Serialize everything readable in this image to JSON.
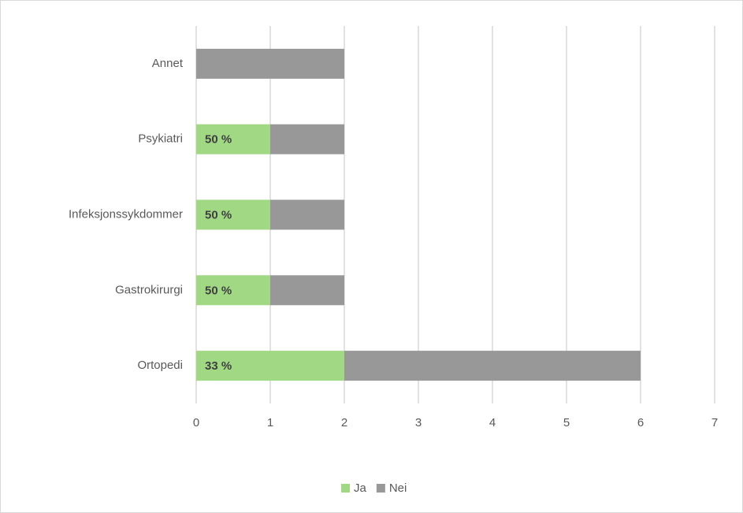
{
  "chart_data": {
    "type": "stacked-bar-horizontal",
    "categories": [
      "Annet",
      "Psykiatri",
      "Infeksjonssykdommer",
      "Gastrokirurgi",
      "Ortopedi"
    ],
    "series": [
      {
        "name": "Ja",
        "color": "#a0d884",
        "values": [
          0,
          1,
          1,
          1,
          2
        ],
        "percent_labels": [
          null,
          "50 %",
          "50 %",
          "50 %",
          "33 %"
        ]
      },
      {
        "name": "Nei",
        "color": "#989898",
        "values": [
          2,
          1,
          1,
          1,
          4
        ]
      }
    ],
    "xlim": [
      0,
      7
    ],
    "xticks": [
      0,
      1,
      2,
      3,
      4,
      5,
      6,
      7
    ],
    "grid": true,
    "legend": "bottom"
  }
}
